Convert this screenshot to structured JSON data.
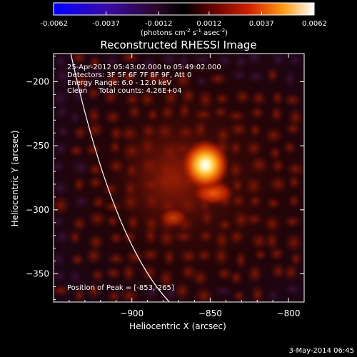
{
  "colorbar": {
    "ticks": [
      "-0.0062",
      "-0.0037",
      "-0.0012",
      "0.0012",
      "0.0037",
      "0.0062"
    ],
    "tick_values": [
      -0.0062,
      -0.0037,
      -0.0012,
      0.0012,
      0.0037,
      0.0062
    ],
    "range": [
      -0.0062,
      0.0062
    ],
    "unit_base": "(photons cm",
    "unit_sup1": "-2",
    "unit_mid1": " s",
    "unit_sup2": "-1",
    "unit_mid2": " asec",
    "unit_sup3": "-2",
    "unit_end": ")"
  },
  "chart_data": {
    "type": "heatmap",
    "title": "Reconstructed RHESSI Image",
    "xlabel": "Heliocentric X (arcsec)",
    "ylabel": "Heliocentric Y (arcsec)",
    "xlim": [
      -950,
      -790
    ],
    "ylim": [
      -372,
      -178
    ],
    "x_ticks": [
      -900,
      -850,
      -800
    ],
    "x_tick_labels": [
      "−900",
      "−850",
      "−800"
    ],
    "y_ticks": [
      -200,
      -250,
      -300,
      -350
    ],
    "y_tick_labels": [
      "−200",
      "−250",
      "−300",
      "−350"
    ],
    "peak": {
      "x": -853,
      "y": -265
    },
    "secondary_source": {
      "x": -848,
      "y": -287
    },
    "limb_line": [
      [
        -939,
        -178
      ],
      [
        -910,
        -300
      ],
      [
        -876,
        -372
      ]
    ],
    "annotations": [
      "25-Apr-2012 05:43:02.000 to 05:49:02.000",
      "Detectors: 3F 5F 6F 7F 8F 9F, Att 0",
      "Energy Range: 6.0 - 12.0 keV",
      "Clean     Total counts: 4.26E+04"
    ],
    "peak_label": "Position of Peak = [-853,-265]",
    "colors": {
      "limb": "#ffffff",
      "background": "#000000"
    }
  },
  "footer": {
    "date": "3-May-2014 06:45"
  }
}
